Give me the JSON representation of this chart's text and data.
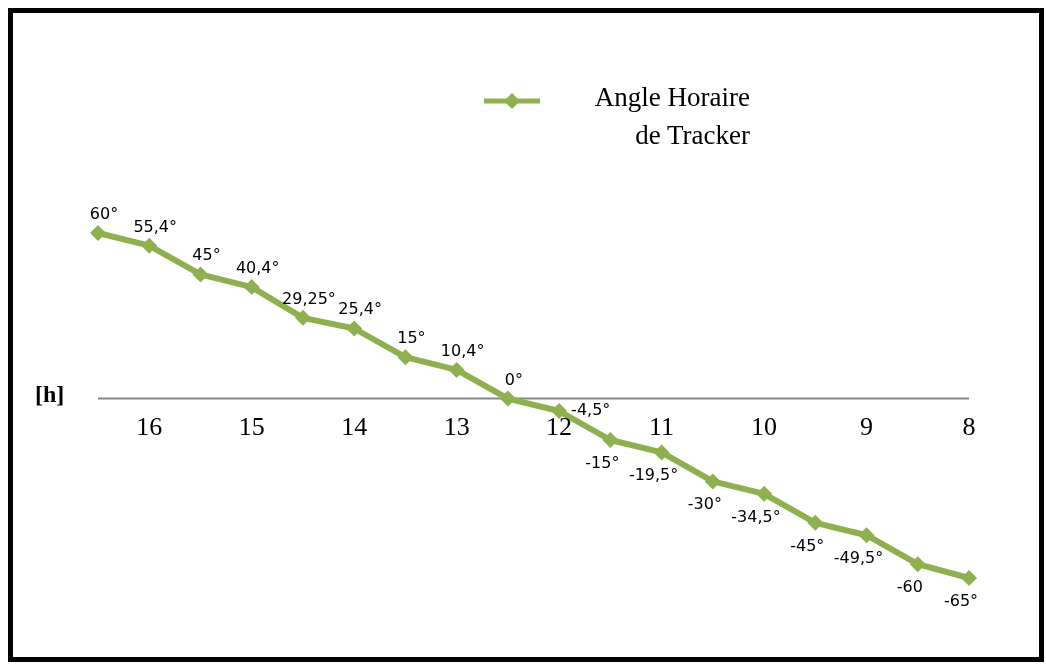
{
  "chart_data": {
    "type": "line",
    "xlabel": "[h]",
    "categories": [
      null,
      "16",
      null,
      "15",
      null,
      "14",
      null,
      "13",
      null,
      "12",
      null,
      "11",
      null,
      "10",
      null,
      "9",
      null,
      "8"
    ],
    "series": [
      {
        "name": "Angle Horaire de Tracker",
        "color": "#8fb04f",
        "values": [
          60,
          55.4,
          45,
          40.4,
          29.25,
          25.4,
          15,
          10.4,
          0,
          -4.5,
          -15,
          -19.5,
          -30,
          -34.5,
          -45,
          -49.5,
          -60,
          -65
        ],
        "value_labels": [
          "60°",
          "55,4°",
          "45°",
          "40,4°",
          "29,25°",
          "25,4°",
          "15°",
          "10,4°",
          "0°",
          "-4,5°",
          "-15°",
          "-19,5°",
          "-30°",
          "-34,5°",
          "-45°",
          "-49,5°",
          "-60",
          "-65°"
        ]
      }
    ],
    "marker": "diamond",
    "line_style": "solid",
    "legend": "top"
  }
}
